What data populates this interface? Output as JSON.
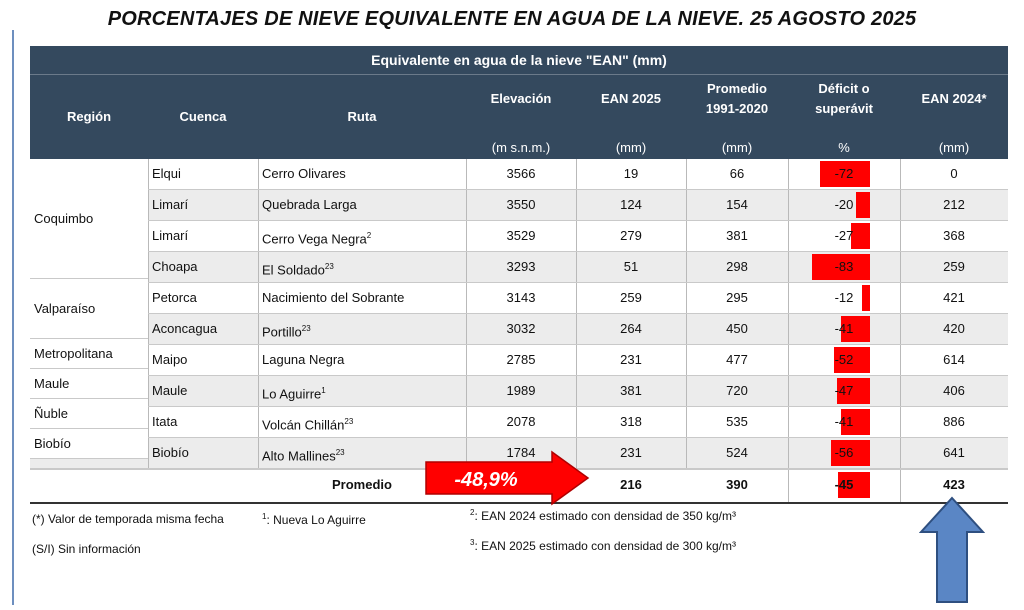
{
  "title": "PORCENTAJES DE NIEVE EQUIVALENTE EN AGUA DE LA NIEVE. 25 AGOSTO 2025",
  "table": {
    "group_header": "Equivalente en agua de la nieve \"EAN\" (mm)",
    "columns": {
      "region": "Región",
      "cuenca": "Cuenca",
      "ruta": "Ruta",
      "elevacion": {
        "label": "Elevación",
        "unit": "(m s.n.m.)"
      },
      "ean2025": {
        "label": "EAN 2025",
        "unit": "(mm)"
      },
      "promedio": {
        "label1": "Promedio",
        "label2": "1991-2020",
        "unit": "(mm)"
      },
      "deficit": {
        "label1": "Déficit o",
        "label2": "superávit",
        "unit": "%"
      },
      "ean2024": {
        "label": "EAN 2024*",
        "unit": "(mm)"
      }
    },
    "regions": [
      {
        "name": "Coquimbo",
        "rows": 4
      },
      {
        "name": "Valparaíso",
        "rows": 2
      },
      {
        "name": "Metropolitana",
        "rows": 1
      },
      {
        "name": "Maule",
        "rows": 1
      },
      {
        "name": "Ñuble",
        "rows": 1
      },
      {
        "name": "Biobío",
        "rows": 1
      }
    ],
    "rows": [
      {
        "cuenca": "Elqui",
        "ruta": "Cerro Olivares",
        "sup": "",
        "elev": "3566",
        "ean2025": "19",
        "prom": "66",
        "def": "-72",
        "def_value": -72,
        "ean2024": "0"
      },
      {
        "cuenca": "Limarí",
        "ruta": "Quebrada Larga",
        "sup": "",
        "elev": "3550",
        "ean2025": "124",
        "prom": "154",
        "def": "-20",
        "def_value": -20,
        "ean2024": "212"
      },
      {
        "cuenca": "Limarí",
        "ruta": "Cerro Vega Negra",
        "sup": "2",
        "elev": "3529",
        "ean2025": "279",
        "prom": "381",
        "def": "-27",
        "def_value": -27,
        "ean2024": "368"
      },
      {
        "cuenca": "Choapa",
        "ruta": "El Soldado",
        "sup": "23",
        "elev": "3293",
        "ean2025": "51",
        "prom": "298",
        "def": "-83",
        "def_value": -83,
        "ean2024": "259"
      },
      {
        "cuenca": "Petorca",
        "ruta": "Nacimiento del Sobrante",
        "sup": "",
        "elev": "3143",
        "ean2025": "259",
        "prom": "295",
        "def": "-12",
        "def_value": -12,
        "ean2024": "421"
      },
      {
        "cuenca": "Aconcagua",
        "ruta": "Portillo",
        "sup": "23",
        "elev": "3032",
        "ean2025": "264",
        "prom": "450",
        "def": "-41",
        "def_value": -41,
        "ean2024": "420"
      },
      {
        "cuenca": "Maipo",
        "ruta": "Laguna Negra",
        "sup": "",
        "elev": "2785",
        "ean2025": "231",
        "prom": "477",
        "def": "-52",
        "def_value": -52,
        "ean2024": "614"
      },
      {
        "cuenca": "Maule",
        "ruta": "Lo Aguirre",
        "sup": "1",
        "elev": "1989",
        "ean2025": "381",
        "prom": "720",
        "def": "-47",
        "def_value": -47,
        "ean2024": "406"
      },
      {
        "cuenca": "Itata",
        "ruta": "Volcán Chillán",
        "sup": "23",
        "elev": "2078",
        "ean2025": "318",
        "prom": "535",
        "def": "-41",
        "def_value": -41,
        "ean2024": "886"
      },
      {
        "cuenca": "Biobío",
        "ruta": "Alto Mallines",
        "sup": "23",
        "elev": "1784",
        "ean2025": "231",
        "prom": "524",
        "def": "-56",
        "def_value": -56,
        "ean2024": "641"
      }
    ],
    "promedio": {
      "label": "Promedio",
      "ean2025": "216",
      "prom": "390",
      "def": "-45",
      "def_value": -45,
      "ean2024": "423"
    }
  },
  "callout": {
    "text": "-48,9%",
    "color": "#ff0000"
  },
  "notes": {
    "star": "(*) Valor de temporada misma fecha",
    "si": "(S/I) Sin información",
    "n1_sup": "1",
    "n1": ": Nueva Lo Aguirre",
    "n2_sup": "2",
    "n2": ": EAN 2024 estimado con densidad de 350 kg/m³",
    "n3_sup": "3",
    "n3": ": EAN 2025 estimado con densidad de 300 kg/m³"
  },
  "colors": {
    "header": "#34495e",
    "bar": "#ff0000",
    "arrow_up": "#5a86c5"
  }
}
